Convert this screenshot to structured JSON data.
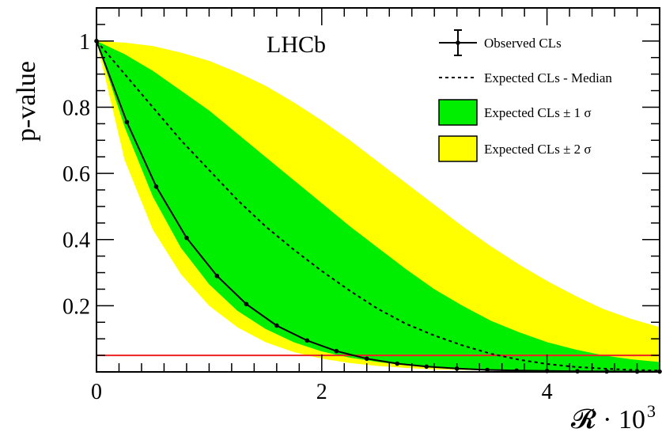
{
  "chart_data": {
    "type": "line",
    "title": "",
    "watermark": "LHCb",
    "xlabel": "𝓡 · 10",
    "xlabel_exponent": "3",
    "ylabel": "p-value",
    "xlim": [
      0,
      5
    ],
    "ylim": [
      0,
      1.1
    ],
    "x_ticks": [
      0,
      2,
      4
    ],
    "x_tick_labels": [
      "0",
      "2",
      "4"
    ],
    "y_ticks": [
      0.2,
      0.4,
      0.6,
      0.8,
      1
    ],
    "y_tick_labels": [
      "0.2",
      "0.4",
      "0.6",
      "0.8",
      "1"
    ],
    "grid": false,
    "legend_position": "top-right",
    "colors": {
      "observed": "#000000",
      "median": "#000000",
      "band1": "#00ee00",
      "band2": "#ffff00",
      "threshold": "#ee2222"
    },
    "reference_line": {
      "y": 0.05
    },
    "series": [
      {
        "name": "Observed CLs",
        "x": [
          0,
          0.27,
          0.53,
          0.8,
          1.07,
          1.33,
          1.6,
          1.87,
          2.13,
          2.4,
          2.67,
          2.93,
          3.2,
          3.47,
          3.73,
          4.0,
          4.27,
          4.53,
          4.8,
          5.0
        ],
        "values": [
          1.0,
          0.755,
          0.56,
          0.405,
          0.29,
          0.205,
          0.14,
          0.095,
          0.063,
          0.04,
          0.025,
          0.016,
          0.01,
          0.006,
          0.004,
          0.003,
          0.002,
          0.0015,
          0.001,
          0.001
        ]
      },
      {
        "name": "Expected CLs - Median",
        "x": [
          0,
          0.25,
          0.5,
          0.75,
          1.0,
          1.25,
          1.5,
          1.75,
          2.0,
          2.25,
          2.5,
          2.75,
          3.0,
          3.25,
          3.5,
          3.75,
          4.0,
          4.25,
          4.5,
          4.75,
          5.0
        ],
        "values": [
          1.0,
          0.9,
          0.8,
          0.7,
          0.61,
          0.52,
          0.44,
          0.37,
          0.305,
          0.245,
          0.19,
          0.145,
          0.11,
          0.08,
          0.055,
          0.037,
          0.024,
          0.015,
          0.01,
          0.006,
          0.004
        ]
      },
      {
        "name": "Expected CLs ± 1 σ",
        "x": [
          0,
          0.25,
          0.5,
          0.75,
          1.0,
          1.25,
          1.5,
          1.75,
          2.0,
          2.25,
          2.5,
          2.75,
          3.0,
          3.25,
          3.5,
          3.75,
          4.0,
          4.25,
          4.5,
          4.75,
          5.0
        ],
        "lower": [
          1.0,
          0.74,
          0.53,
          0.375,
          0.265,
          0.185,
          0.13,
          0.09,
          0.062,
          0.043,
          0.03,
          0.02,
          0.014,
          0.01,
          0.007,
          0.005,
          0.004,
          0.003,
          0.002,
          0.0015,
          0.001
        ],
        "upper": [
          1.0,
          0.96,
          0.91,
          0.85,
          0.79,
          0.72,
          0.65,
          0.58,
          0.51,
          0.44,
          0.375,
          0.31,
          0.25,
          0.2,
          0.155,
          0.12,
          0.09,
          0.068,
          0.05,
          0.038,
          0.03
        ]
      },
      {
        "name": "Expected CLs ± 2 σ",
        "x": [
          0,
          0.25,
          0.5,
          0.75,
          1.0,
          1.25,
          1.5,
          1.75,
          2.0,
          2.25,
          2.5,
          2.75,
          3.0,
          3.25,
          3.5,
          3.75,
          4.0,
          4.25,
          4.5,
          4.75,
          5.0
        ],
        "lower": [
          1.0,
          0.64,
          0.43,
          0.295,
          0.2,
          0.135,
          0.09,
          0.06,
          0.04,
          0.027,
          0.018,
          0.012,
          0.008,
          0.006,
          0.004,
          0.003,
          0.002,
          0.0015,
          0.001,
          0.001,
          0.001
        ],
        "upper": [
          1.0,
          0.995,
          0.985,
          0.965,
          0.94,
          0.905,
          0.865,
          0.815,
          0.76,
          0.7,
          0.635,
          0.57,
          0.505,
          0.44,
          0.38,
          0.325,
          0.275,
          0.23,
          0.19,
          0.16,
          0.135
        ]
      }
    ]
  }
}
